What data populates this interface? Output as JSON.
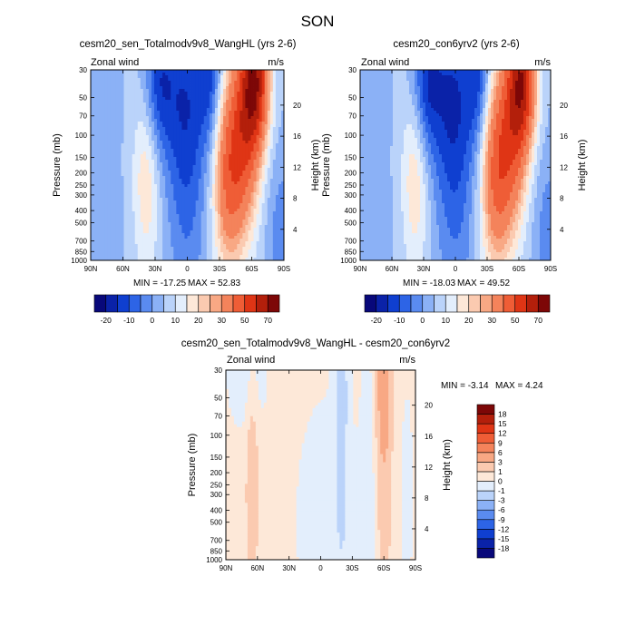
{
  "figure": {
    "title": "SON"
  },
  "chart_data": [
    {
      "type": "heatmap",
      "title": "cesm20_sen_Totalmodv9v8_WangHL (yrs 2-6)",
      "left_subtitle": "Zonal wind",
      "right_subtitle": "m/s",
      "xlabel": "",
      "ylabel": "Pressure (mb)",
      "ylabel_right": "Height (km)",
      "x_ticks": [
        "90N",
        "60N",
        "30N",
        "0",
        "30S",
        "60S",
        "90S"
      ],
      "x_values": [
        90,
        60,
        30,
        0,
        -30,
        -60,
        -90
      ],
      "xlim": [
        90,
        -90
      ],
      "y_ticks": [
        "30",
        "50",
        "70",
        "100",
        "150",
        "200",
        "250",
        "300",
        "400",
        "500",
        "700",
        "850",
        "1000"
      ],
      "y_values": [
        30,
        50,
        70,
        100,
        150,
        200,
        250,
        300,
        400,
        500,
        700,
        850,
        1000
      ],
      "ylim": [
        1000,
        30
      ],
      "y_scale": "log",
      "height_ticks": [
        "4",
        "8",
        "12",
        "16",
        "20"
      ],
      "height_values": [
        4,
        8,
        12,
        16,
        20
      ],
      "min_label": "MIN = -17.25",
      "max_label": "MAX =  52.83",
      "colorbar": {
        "orientation": "horizontal",
        "labels": [
          "-20",
          "-10",
          "0",
          "10",
          "20",
          "30",
          "50",
          "70"
        ],
        "levels": [
          -20,
          -15,
          -10,
          -5,
          0,
          5,
          10,
          15,
          20,
          25,
          30,
          40,
          50,
          60,
          70
        ]
      },
      "features": [
        {
          "lat": 38,
          "p": 200,
          "value": 15,
          "wlat": 9,
          "wz": 1.3
        },
        {
          "lat": -38,
          "p": 200,
          "value": 35,
          "wlat": 10,
          "wz": 1.25
        },
        {
          "lat": -54,
          "p": 90,
          "value": 35,
          "wlat": 10,
          "wz": 1.3
        },
        {
          "lat": -64,
          "p": 35,
          "value": 52,
          "wlat": 9,
          "wz": 0.9
        },
        {
          "lat": 3,
          "p": 50,
          "value": -14,
          "wlat": 16,
          "wz": 1.4
        },
        {
          "lat": 28,
          "p": 40,
          "value": -17,
          "wlat": 10,
          "wz": 0.9
        },
        {
          "lat": -22,
          "p": 35,
          "value": -15,
          "wlat": 8,
          "wz": 0.9
        },
        {
          "lat": 0,
          "p": 300,
          "value": -8,
          "wlat": 12,
          "wz": 2.2
        },
        {
          "lat": 88,
          "p": 700,
          "value": -5,
          "wlat": 14,
          "wz": 2.5
        },
        {
          "lat": -88,
          "p": 700,
          "value": -8,
          "wlat": 10,
          "wz": 1.2
        }
      ]
    },
    {
      "type": "heatmap",
      "title": "cesm20_con6yrv2 (yrs 2-6)",
      "left_subtitle": "Zonal wind",
      "right_subtitle": "m/s",
      "xlabel": "",
      "ylabel": "Pressure (mb)",
      "ylabel_right": "Height (km)",
      "x_ticks": [
        "90N",
        "60N",
        "30N",
        "0",
        "30S",
        "60S",
        "90S"
      ],
      "x_values": [
        90,
        60,
        30,
        0,
        -30,
        -60,
        -90
      ],
      "xlim": [
        90,
        -90
      ],
      "y_ticks": [
        "30",
        "50",
        "70",
        "100",
        "150",
        "200",
        "250",
        "300",
        "400",
        "500",
        "700",
        "850",
        "1000"
      ],
      "y_values": [
        30,
        50,
        70,
        100,
        150,
        200,
        250,
        300,
        400,
        500,
        700,
        850,
        1000
      ],
      "ylim": [
        1000,
        30
      ],
      "y_scale": "log",
      "height_ticks": [
        "4",
        "8",
        "12",
        "16",
        "20"
      ],
      "height_values": [
        4,
        8,
        12,
        16,
        20
      ],
      "min_label": "MIN = -18.03",
      "max_label": "MAX =  49.52",
      "colorbar": {
        "orientation": "horizontal",
        "labels": [
          "-20",
          "-10",
          "0",
          "10",
          "20",
          "30",
          "50",
          "70"
        ],
        "levels": [
          -20,
          -15,
          -10,
          -5,
          0,
          5,
          10,
          15,
          20,
          25,
          30,
          40,
          50,
          60,
          70
        ]
      },
      "features": [
        {
          "lat": 38,
          "p": 200,
          "value": 15,
          "wlat": 9,
          "wz": 1.3
        },
        {
          "lat": -38,
          "p": 200,
          "value": 35,
          "wlat": 10,
          "wz": 1.25
        },
        {
          "lat": -54,
          "p": 90,
          "value": 33,
          "wlat": 10,
          "wz": 1.3
        },
        {
          "lat": -64,
          "p": 35,
          "value": 49,
          "wlat": 9,
          "wz": 0.9
        },
        {
          "lat": 3,
          "p": 50,
          "value": -15,
          "wlat": 16,
          "wz": 1.4
        },
        {
          "lat": 28,
          "p": 40,
          "value": -18,
          "wlat": 10,
          "wz": 0.9
        },
        {
          "lat": -22,
          "p": 35,
          "value": -15,
          "wlat": 8,
          "wz": 0.9
        },
        {
          "lat": 0,
          "p": 300,
          "value": -8,
          "wlat": 12,
          "wz": 2.2
        },
        {
          "lat": 88,
          "p": 700,
          "value": -5,
          "wlat": 14,
          "wz": 2.5
        },
        {
          "lat": -88,
          "p": 700,
          "value": -8,
          "wlat": 10,
          "wz": 1.2
        }
      ]
    },
    {
      "type": "heatmap",
      "title": "cesm20_sen_Totalmodv9v8_WangHL - cesm20_con6yrv2",
      "left_subtitle": "Zonal wind",
      "right_subtitle": "m/s",
      "xlabel": "",
      "ylabel": "Pressure (mb)",
      "ylabel_right": "Height (km)",
      "x_ticks": [
        "90N",
        "60N",
        "30N",
        "0",
        "30S",
        "60S",
        "90S"
      ],
      "x_values": [
        90,
        60,
        30,
        0,
        -30,
        -60,
        -90
      ],
      "xlim": [
        90,
        -90
      ],
      "y_ticks": [
        "30",
        "50",
        "70",
        "100",
        "150",
        "200",
        "250",
        "300",
        "400",
        "500",
        "700",
        "850",
        "1000"
      ],
      "y_values": [
        30,
        50,
        70,
        100,
        150,
        200,
        250,
        300,
        400,
        500,
        700,
        850,
        1000
      ],
      "ylim": [
        1000,
        30
      ],
      "y_scale": "log",
      "height_ticks": [
        "4",
        "8",
        "12",
        "16",
        "20"
      ],
      "height_values": [
        4,
        8,
        12,
        16,
        20
      ],
      "min_label": "MIN = -3.14",
      "max_label": "MAX =   4.24",
      "colorbar": {
        "orientation": "vertical",
        "labels": [
          "-18",
          "-15",
          "-12",
          "-9",
          "-6",
          "-3",
          "-1",
          "0",
          "1",
          "3",
          "6",
          "9",
          "12",
          "15",
          "18"
        ],
        "levels": [
          -18,
          -15,
          -12,
          -9,
          -6,
          -3,
          -1,
          0,
          1,
          3,
          6,
          9,
          12,
          15,
          18
        ]
      },
      "base_value": 0.4,
      "features": [
        {
          "lat": 65,
          "p": 230,
          "value": 1.8,
          "wlat": 4,
          "wz": 1.3
        },
        {
          "lat": -20,
          "p": 45,
          "value": -1.8,
          "wlat": 5,
          "wz": 0.9
        },
        {
          "lat": -20,
          "p": 350,
          "value": -1.5,
          "wlat": 3,
          "wz": 0.7
        },
        {
          "lat": -5,
          "p": 500,
          "value": -0.9,
          "wlat": 22,
          "wz": 1.8
        },
        {
          "lat": 70,
          "p": 35,
          "value": -0.9,
          "wlat": 15,
          "wz": 0.8
        },
        {
          "lat": -60,
          "p": 40,
          "value": 4.2,
          "wlat": 4,
          "wz": 0.8
        },
        {
          "lat": -60,
          "p": 150,
          "value": 1.8,
          "wlat": 5,
          "wz": 1.8
        },
        {
          "lat": -45,
          "p": 500,
          "value": -0.9,
          "wlat": 6,
          "wz": 2.5
        },
        {
          "lat": -82,
          "p": 300,
          "value": -0.6,
          "wlat": 6,
          "wz": 2.0
        }
      ]
    }
  ]
}
